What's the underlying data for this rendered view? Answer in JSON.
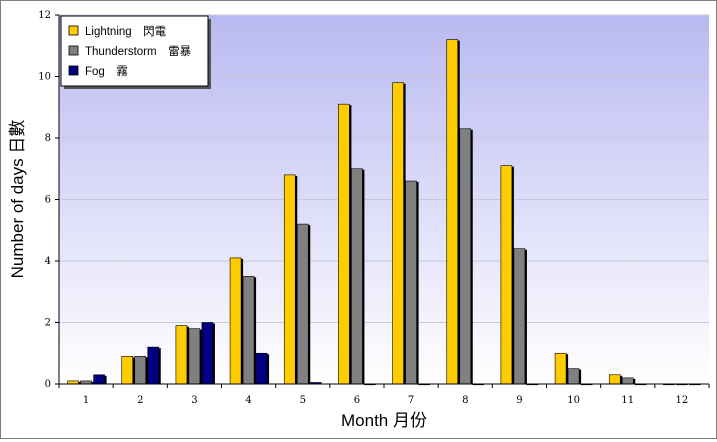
{
  "chart_data": {
    "type": "bar",
    "categories": [
      "1",
      "2",
      "3",
      "4",
      "5",
      "6",
      "7",
      "8",
      "9",
      "10",
      "11",
      "12"
    ],
    "series": [
      {
        "name": "Lightning　閃電",
        "color": "#ffcc00",
        "values": [
          0.1,
          0.9,
          1.9,
          4.1,
          6.8,
          9.1,
          9.8,
          11.2,
          7.1,
          1.0,
          0.3,
          0.0
        ]
      },
      {
        "name": "Thunderstorm　雷暴",
        "color": "#808080",
        "values": [
          0.1,
          0.9,
          1.8,
          3.5,
          5.2,
          7.0,
          6.6,
          8.3,
          4.4,
          0.5,
          0.2,
          0.0
        ]
      },
      {
        "name": "Fog　霧",
        "color": "#000080",
        "values": [
          0.3,
          1.2,
          2.0,
          1.0,
          0.05,
          0.0,
          0.0,
          0.0,
          0.0,
          0.0,
          0.0,
          0.0
        ]
      }
    ],
    "xlabel": "Month 月份",
    "ylabel": "Number of days 日數",
    "ylim": [
      0,
      12
    ],
    "yticks": [
      "0",
      "2",
      "4",
      "6",
      "8",
      "10",
      "12"
    ],
    "grid": true,
    "legend_position": "top-left",
    "background_gradient": [
      "#b9b9f2",
      "#ffffff"
    ]
  }
}
